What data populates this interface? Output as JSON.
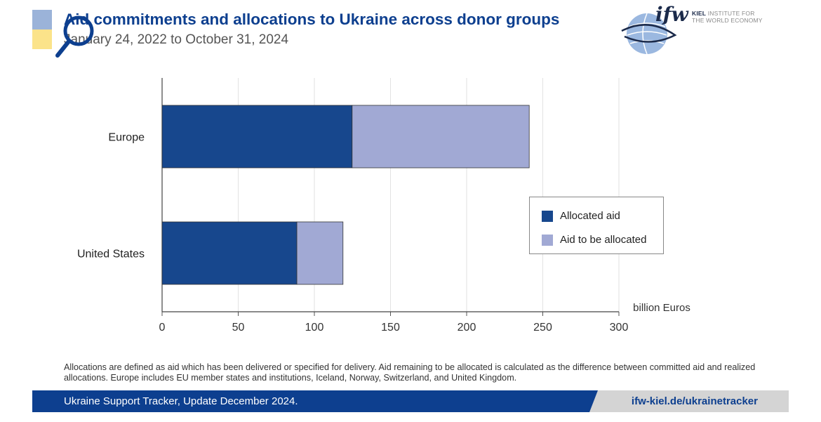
{
  "header": {
    "title": "Aid commitments and allocations to Ukraine across donor groups",
    "subtitle": "January 24, 2022 to October 31, 2024"
  },
  "logo": {
    "brand": "ifw",
    "line1_bold": "KIEL",
    "line1": "INSTITUTE FOR",
    "line2": "THE WORLD ECONOMY"
  },
  "colors": {
    "allocated": "#17478d",
    "to_be_allocated": "#a1a9d4",
    "title": "#0d3f8f"
  },
  "chart_data": {
    "type": "bar",
    "orientation": "horizontal",
    "stacked": true,
    "categories": [
      "Europe",
      "United States"
    ],
    "series": [
      {
        "name": "Allocated aid",
        "values": [
          124.8,
          88.5
        ]
      },
      {
        "name": "Aid to be allocated",
        "values": [
          116.3,
          30.3
        ]
      }
    ],
    "xlim": [
      0,
      300
    ],
    "xticks": [
      0,
      50,
      100,
      150,
      200,
      250,
      300
    ],
    "xlabel": "billion Euros",
    "grid": true,
    "legend": "right"
  },
  "footnote": "Allocations are defined as aid which has been delivered or specified for delivery. Aid remaining to be allocated is calculated as the difference between committed aid and realized allocations. Europe includes EU member states and institutions, Iceland, Norway, Switzerland, and United Kingdom.",
  "footer": {
    "left": "Ukraine Support Tracker, Update December 2024.",
    "right": "ifw-kiel.de/ukrainetracker"
  }
}
